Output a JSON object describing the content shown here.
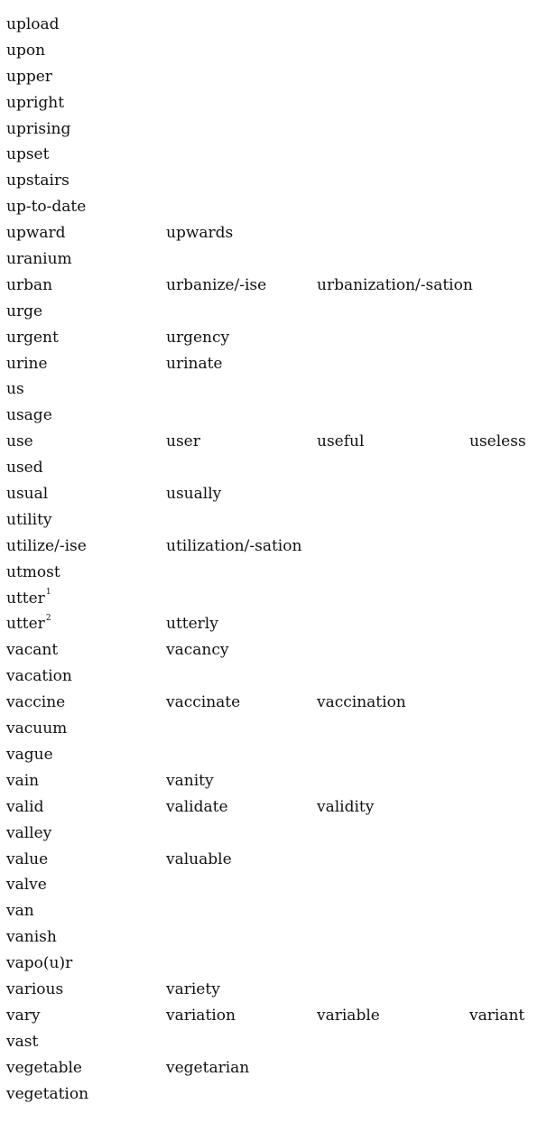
{
  "rows": [
    {
      "words": [
        "upload"
      ]
    },
    {
      "words": [
        "upon"
      ]
    },
    {
      "words": [
        "upper"
      ]
    },
    {
      "words": [
        "upright"
      ]
    },
    {
      "words": [
        "uprising"
      ]
    },
    {
      "words": [
        "upset"
      ]
    },
    {
      "words": [
        "upstairs"
      ]
    },
    {
      "words": [
        "up-to-date"
      ]
    },
    {
      "words": [
        "upward",
        "upwards"
      ]
    },
    {
      "words": [
        "uranium"
      ]
    },
    {
      "words": [
        "urban",
        "urbanize/-ise",
        "urbanization/-sation"
      ]
    },
    {
      "words": [
        "urge"
      ]
    },
    {
      "words": [
        "urgent",
        "urgency"
      ]
    },
    {
      "words": [
        "urine",
        "urinate"
      ]
    },
    {
      "words": [
        "us"
      ]
    },
    {
      "words": [
        "usage"
      ]
    },
    {
      "words": [
        "use",
        "user",
        "useful",
        "useless"
      ]
    },
    {
      "words": [
        "used"
      ]
    },
    {
      "words": [
        "usual",
        "usually"
      ]
    },
    {
      "words": [
        "utility"
      ]
    },
    {
      "words": [
        "utilize/-ise",
        "utilization/-sation"
      ]
    },
    {
      "words": [
        "utmost"
      ]
    },
    {
      "words": [
        "utter"
      ],
      "sup": "1"
    },
    {
      "words": [
        "utter",
        "utterly"
      ],
      "sup": "2"
    },
    {
      "words": [
        "vacant",
        "vacancy"
      ]
    },
    {
      "words": [
        "vacation"
      ]
    },
    {
      "words": [
        "vaccine",
        "vaccinate",
        "vaccination"
      ]
    },
    {
      "words": [
        "vacuum"
      ]
    },
    {
      "words": [
        "vague"
      ]
    },
    {
      "words": [
        "vain",
        "vanity"
      ]
    },
    {
      "words": [
        "valid",
        "validate",
        "validity"
      ]
    },
    {
      "words": [
        "valley"
      ]
    },
    {
      "words": [
        "value",
        "valuable"
      ]
    },
    {
      "words": [
        "valve"
      ]
    },
    {
      "words": [
        "van"
      ]
    },
    {
      "words": [
        "vanish"
      ]
    },
    {
      "words": [
        "vapo(u)r"
      ]
    },
    {
      "words": [
        "various",
        "variety"
      ]
    },
    {
      "words": [
        "vary",
        "variation",
        "variable",
        "variant"
      ]
    },
    {
      "words": [
        "vast"
      ]
    },
    {
      "words": [
        "vegetable",
        "vegetarian"
      ]
    },
    {
      "words": [
        "vegetation"
      ]
    }
  ]
}
